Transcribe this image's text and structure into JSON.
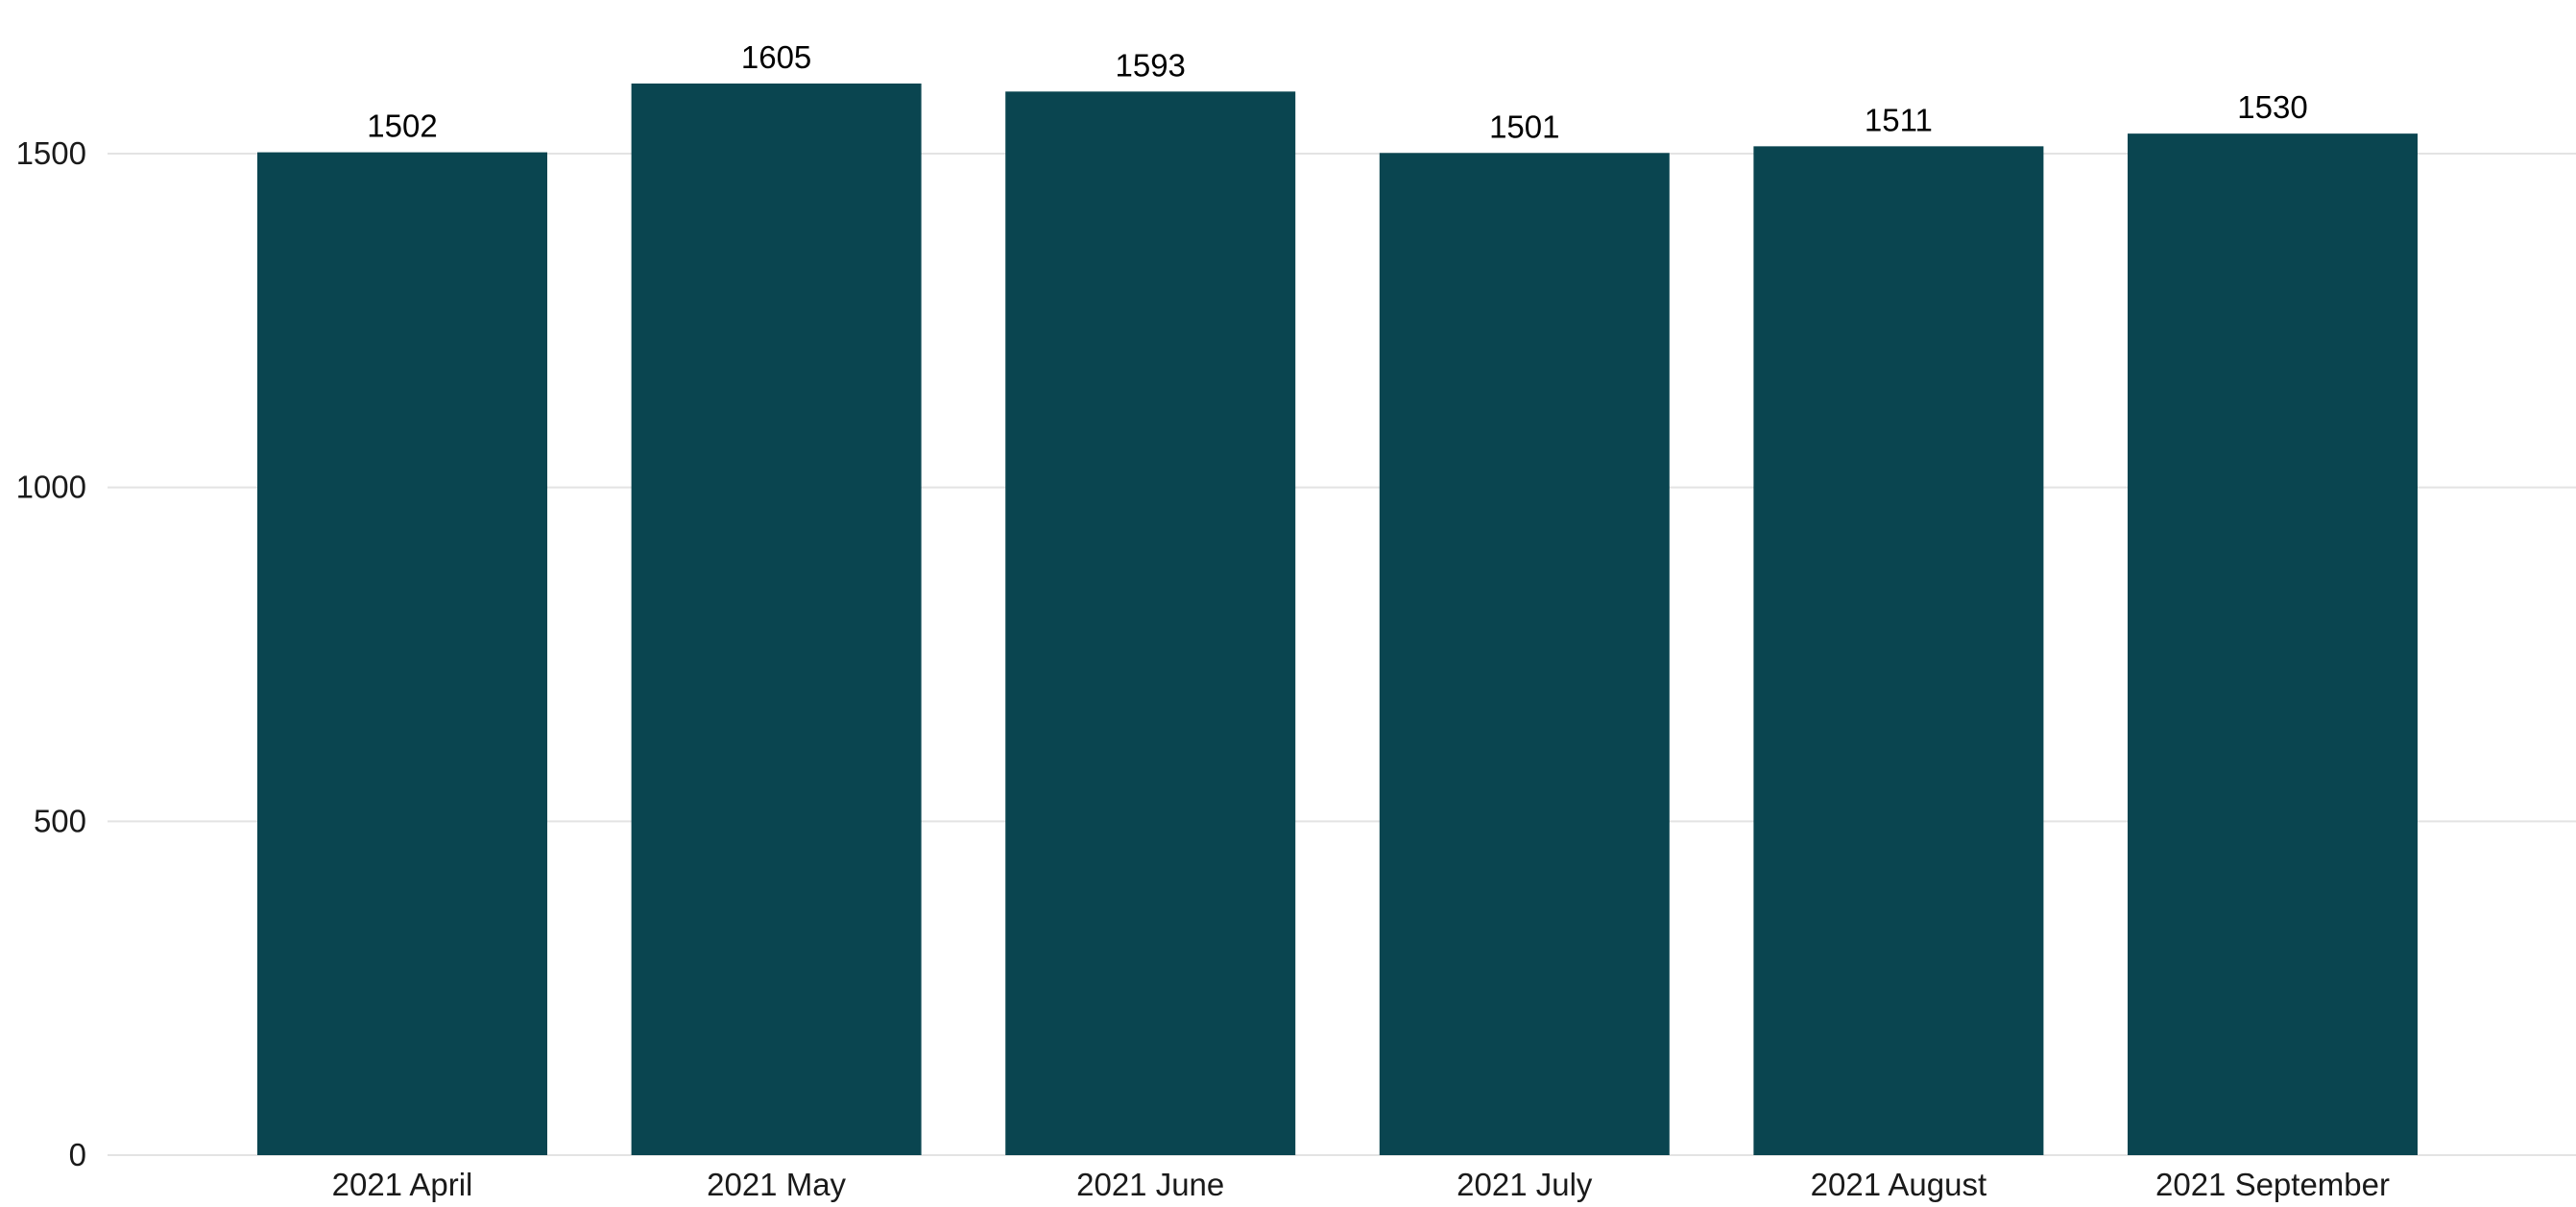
{
  "chart_data": {
    "type": "bar",
    "categories": [
      "2021 April",
      "2021 May",
      "2021 June",
      "2021 July",
      "2021 August",
      "2021 September"
    ],
    "values": [
      1502,
      1605,
      1593,
      1501,
      1511,
      1530
    ],
    "data_labels": [
      "1502",
      "1605",
      "1593",
      "1501",
      "1511",
      "1530"
    ],
    "title": "",
    "xlabel": "",
    "ylabel": "",
    "ylim": [
      0,
      1650
    ],
    "y_ticks": [
      0,
      500,
      1000,
      1500
    ],
    "y_tick_labels": [
      "0",
      "500",
      "1000",
      "1500"
    ],
    "grid": true,
    "legend": "none",
    "bar_color": "#0a4550",
    "grid_color": "#e3e3e3"
  }
}
